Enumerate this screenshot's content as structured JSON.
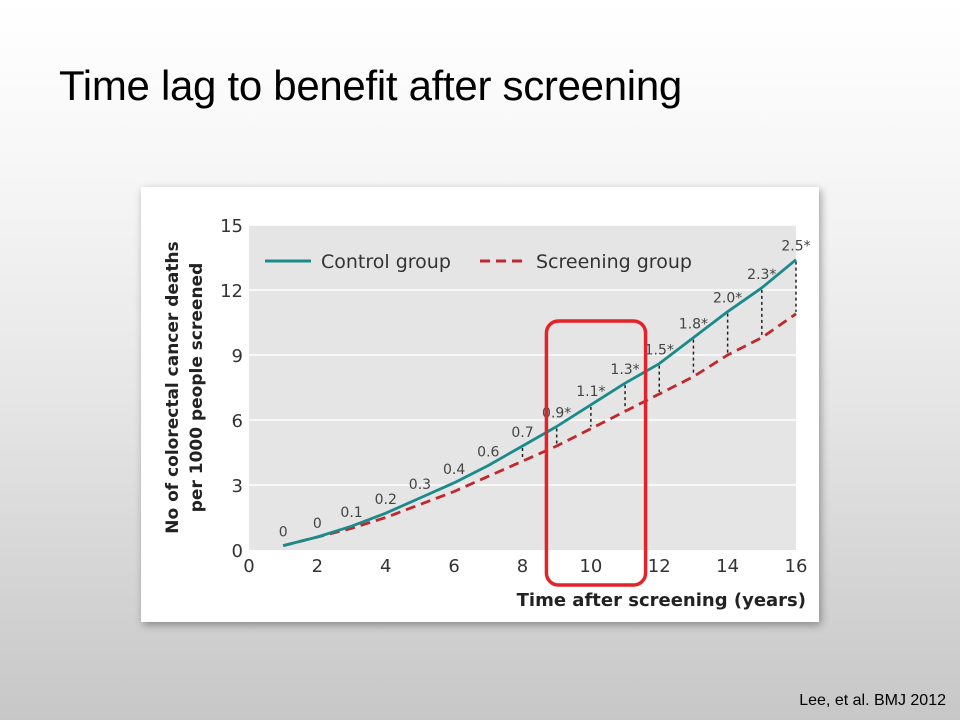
{
  "slide": {
    "title": "Time lag to benefit after screening",
    "citation": "Lee, et al. BMJ 2012"
  },
  "colors": {
    "plot_background": "#e5e5e5",
    "control": "#1a8a8a",
    "screening": "#c0282d",
    "highlight_box": "#e3222a",
    "axis_text": "#333333",
    "annotation_text": "#444444"
  },
  "highlight": {
    "x_range": [
      8.7,
      11.6
    ],
    "description_shape": "rounded rectangle"
  },
  "chart_data": {
    "type": "line",
    "title": "",
    "xlabel": "Time after screening (years)",
    "ylabel_lines": [
      "No of colorectal cancer deaths",
      "per 1000 people screened"
    ],
    "xlim": [
      0,
      16
    ],
    "ylim": [
      0,
      15
    ],
    "xticks": [
      0,
      2,
      4,
      6,
      8,
      10,
      12,
      14,
      16
    ],
    "yticks": [
      0,
      3,
      6,
      9,
      12,
      15
    ],
    "grid": "horizontal",
    "legend_position": "top-left",
    "series": [
      {
        "name": "Control group",
        "style": "solid",
        "x": [
          1,
          2,
          3,
          4,
          5,
          6,
          7,
          8,
          9,
          10,
          11,
          12,
          13,
          14,
          15,
          16
        ],
        "values": [
          0.2,
          0.6,
          1.1,
          1.7,
          2.4,
          3.1,
          3.9,
          4.8,
          5.7,
          6.7,
          7.7,
          8.6,
          9.8,
          11.0,
          12.1,
          13.4
        ]
      },
      {
        "name": "Screening group",
        "style": "dashed",
        "x": [
          1,
          2,
          3,
          4,
          5,
          6,
          7,
          8,
          9,
          10,
          11,
          12,
          13,
          14,
          15,
          16
        ],
        "values": [
          0.2,
          0.6,
          1.0,
          1.5,
          2.1,
          2.7,
          3.4,
          4.1,
          4.8,
          5.6,
          6.4,
          7.2,
          8.0,
          9.0,
          9.8,
          10.9
        ]
      }
    ],
    "difference_labels": [
      {
        "x": 1,
        "label": "0"
      },
      {
        "x": 2,
        "label": "0"
      },
      {
        "x": 3,
        "label": "0.1"
      },
      {
        "x": 4,
        "label": "0.2"
      },
      {
        "x": 5,
        "label": "0.3"
      },
      {
        "x": 6,
        "label": "0.4"
      },
      {
        "x": 7,
        "label": "0.6"
      },
      {
        "x": 8,
        "label": "0.7"
      },
      {
        "x": 9,
        "label": "0.9*"
      },
      {
        "x": 10,
        "label": "1.1*"
      },
      {
        "x": 11,
        "label": "1.3*"
      },
      {
        "x": 12,
        "label": "1.5*"
      },
      {
        "x": 13,
        "label": "1.8*"
      },
      {
        "x": 14,
        "label": "2.0*"
      },
      {
        "x": 15,
        "label": "2.3*"
      },
      {
        "x": 16,
        "label": "2.5*"
      }
    ]
  }
}
